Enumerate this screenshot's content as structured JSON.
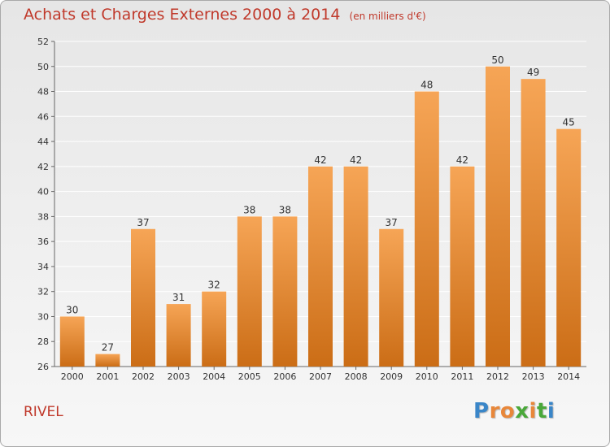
{
  "title": "Achats et Charges Externes 2000 à 2014",
  "unit_note": "(en milliers d'€)",
  "location": "RIVEL",
  "logo": {
    "letters": [
      "P",
      "r",
      "o",
      "x",
      "i",
      "t",
      "i"
    ],
    "colors": [
      "#3a86c8",
      "#e8873a",
      "#e8873a",
      "#4aa83a",
      "#e8873a",
      "#4aa83a",
      "#3a86c8"
    ]
  },
  "colors": {
    "bar_top": "#f6a556",
    "bar_bottom": "#cb6d16",
    "title": "#c0392b",
    "grid": "#ffffff",
    "axis": "#666666"
  },
  "chart_data": {
    "type": "bar",
    "title": "Achats et Charges Externes 2000 à 2014",
    "subtitle": "(en milliers d'€)",
    "xlabel": "",
    "ylabel": "",
    "categories": [
      "2000",
      "2001",
      "2002",
      "2003",
      "2004",
      "2005",
      "2006",
      "2007",
      "2008",
      "2009",
      "2010",
      "2011",
      "2012",
      "2013",
      "2014"
    ],
    "values": [
      30,
      27,
      37,
      31,
      32,
      38,
      38,
      42,
      42,
      37,
      48,
      42,
      50,
      49,
      45
    ],
    "ylim": [
      26,
      52
    ],
    "yticks": [
      26,
      28,
      30,
      32,
      34,
      36,
      38,
      40,
      42,
      44,
      46,
      48,
      50,
      52
    ],
    "grid": true,
    "legend": "none"
  }
}
